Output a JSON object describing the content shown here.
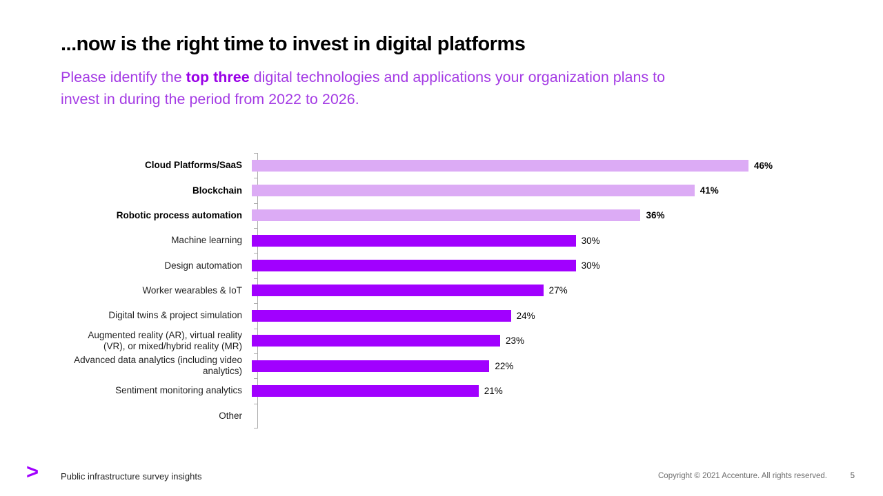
{
  "slide": {
    "title": "...now is the right time to invest in digital platforms",
    "subtitle_pre": "Please identify the ",
    "subtitle_highlight": "top three",
    "subtitle_post": " digital technologies and applications your organization plans to invest in during the period from 2022 to 2026."
  },
  "chart_data": {
    "type": "bar",
    "orientation": "horizontal",
    "categories": [
      "Cloud Platforms/SaaS",
      "Blockchain",
      "Robotic process automation",
      "Machine learning",
      "Design automation",
      "Worker wearables & IoT",
      "Digital twins & project simulation",
      "Augmented reality (AR), virtual reality (VR), or mixed/hybrid reality (MR)",
      "Advanced data analytics (including video analytics)",
      "Sentiment monitoring analytics",
      "Other"
    ],
    "values": [
      46,
      41,
      36,
      30,
      30,
      27,
      24,
      23,
      22,
      21,
      0
    ],
    "value_labels": [
      "46%",
      "41%",
      "36%",
      "30%",
      "30%",
      "27%",
      "24%",
      "23%",
      "22%",
      "21%",
      ""
    ],
    "highlight_top": 3,
    "xlim": [
      0,
      48
    ],
    "grid": false,
    "legend": false,
    "colors": {
      "highlight_bar": "#dcabf5",
      "bar": "#a100ff",
      "axis": "#ababab"
    }
  },
  "footer": {
    "logo_glyph": ">",
    "left_text": "Public infrastructure survey insights",
    "copyright": "Copyright © 2021 Accenture. All rights reserved.",
    "page_number": "5"
  }
}
